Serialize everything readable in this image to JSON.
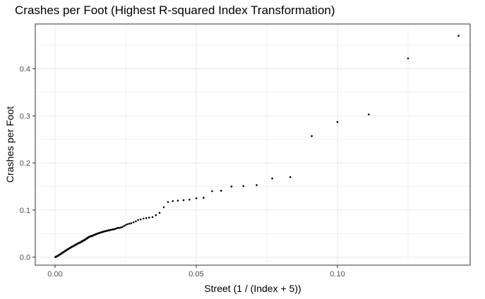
{
  "chart_data": {
    "type": "scatter",
    "title": "Crashes per Foot (Highest R-squared Index Transformation)",
    "xlabel": "Street (1 / (Index + 5))",
    "ylabel": "Crashes per Foot",
    "xlim": [
      -0.007,
      0.147
    ],
    "ylim": [
      -0.017,
      0.495
    ],
    "x_ticks": [
      0.0,
      0.05,
      0.1
    ],
    "x_tick_labels": [
      "0.00",
      "0.05",
      "0.10"
    ],
    "y_ticks": [
      0.0,
      0.1,
      0.2,
      0.3,
      0.4
    ],
    "y_tick_labels": [
      "0.0",
      "0.1",
      "0.2",
      "0.3",
      "0.4"
    ],
    "grid": true,
    "legend": "none",
    "marker_color": "#000000",
    "panel_border_color": "#333333",
    "grid_color": "#ebebeb",
    "points": [
      [
        0.1429,
        0.47
      ],
      [
        0.125,
        0.422
      ],
      [
        0.1111,
        0.303
      ],
      [
        0.1,
        0.287
      ],
      [
        0.0909,
        0.257
      ],
      [
        0.0833,
        0.17
      ],
      [
        0.0769,
        0.167
      ],
      [
        0.0714,
        0.153
      ],
      [
        0.0667,
        0.151
      ],
      [
        0.0625,
        0.15
      ],
      [
        0.0588,
        0.141
      ],
      [
        0.0556,
        0.14
      ],
      [
        0.0526,
        0.126
      ],
      [
        0.05,
        0.125
      ],
      [
        0.0476,
        0.122
      ],
      [
        0.0455,
        0.121
      ],
      [
        0.0435,
        0.12
      ],
      [
        0.0417,
        0.119
      ],
      [
        0.04,
        0.117
      ],
      [
        0.0385,
        0.106
      ],
      [
        0.037,
        0.094
      ],
      [
        0.0357,
        0.089
      ],
      [
        0.0345,
        0.085
      ],
      [
        0.0333,
        0.084
      ],
      [
        0.0323,
        0.083
      ],
      [
        0.0313,
        0.082
      ],
      [
        0.0303,
        0.08
      ],
      [
        0.0294,
        0.079
      ],
      [
        0.0286,
        0.076
      ],
      [
        0.0278,
        0.074
      ],
      [
        0.027,
        0.072
      ],
      [
        0.0263,
        0.071
      ],
      [
        0.0256,
        0.07
      ],
      [
        0.025,
        0.068
      ],
      [
        0.0244,
        0.066
      ],
      [
        0.0238,
        0.064
      ],
      [
        0.0233,
        0.063
      ],
      [
        0.0227,
        0.062
      ],
      [
        0.0222,
        0.062
      ],
      [
        0.0217,
        0.061
      ],
      [
        0.0213,
        0.06
      ],
      [
        0.0208,
        0.059
      ],
      [
        0.0204,
        0.059
      ],
      [
        0.02,
        0.058
      ],
      [
        0.0196,
        0.058
      ],
      [
        0.0192,
        0.057
      ],
      [
        0.0189,
        0.057
      ],
      [
        0.0185,
        0.056
      ],
      [
        0.0182,
        0.056
      ],
      [
        0.0179,
        0.055
      ],
      [
        0.0175,
        0.055
      ],
      [
        0.0172,
        0.054
      ],
      [
        0.0169,
        0.054
      ],
      [
        0.0167,
        0.053
      ],
      [
        0.0164,
        0.053
      ],
      [
        0.0161,
        0.052
      ],
      [
        0.0159,
        0.052
      ],
      [
        0.0156,
        0.051
      ],
      [
        0.0154,
        0.051
      ],
      [
        0.0152,
        0.05
      ],
      [
        0.0149,
        0.05
      ],
      [
        0.0147,
        0.049
      ],
      [
        0.0145,
        0.049
      ],
      [
        0.0143,
        0.048
      ],
      [
        0.0141,
        0.048
      ],
      [
        0.0139,
        0.047
      ],
      [
        0.0137,
        0.047
      ],
      [
        0.0135,
        0.046
      ],
      [
        0.0133,
        0.046
      ],
      [
        0.0132,
        0.045
      ],
      [
        0.013,
        0.045
      ],
      [
        0.0128,
        0.045
      ],
      [
        0.0127,
        0.044
      ],
      [
        0.0125,
        0.044
      ],
      [
        0.0123,
        0.044
      ],
      [
        0.0122,
        0.043
      ],
      [
        0.012,
        0.043
      ],
      [
        0.0119,
        0.042
      ],
      [
        0.0118,
        0.042
      ],
      [
        0.0116,
        0.041
      ],
      [
        0.0115,
        0.041
      ],
      [
        0.0114,
        0.04
      ],
      [
        0.0112,
        0.04
      ],
      [
        0.0111,
        0.039
      ],
      [
        0.011,
        0.039
      ],
      [
        0.0109,
        0.038
      ],
      [
        0.0108,
        0.038
      ],
      [
        0.0106,
        0.037
      ],
      [
        0.0105,
        0.037
      ],
      [
        0.0104,
        0.036
      ],
      [
        0.0103,
        0.036
      ],
      [
        0.0102,
        0.036
      ],
      [
        0.0101,
        0.035
      ],
      [
        0.01,
        0.035
      ],
      [
        0.0099,
        0.035
      ],
      [
        0.0098,
        0.034
      ],
      [
        0.0097,
        0.034
      ],
      [
        0.0096,
        0.034
      ],
      [
        0.0095,
        0.033
      ],
      [
        0.0094,
        0.033
      ],
      [
        0.0093,
        0.033
      ],
      [
        0.0092,
        0.032
      ],
      [
        0.0091,
        0.032
      ],
      [
        0.0089,
        0.031
      ],
      [
        0.0087,
        0.031
      ],
      [
        0.0085,
        0.03
      ],
      [
        0.0083,
        0.03
      ],
      [
        0.0081,
        0.029
      ],
      [
        0.0079,
        0.028
      ],
      [
        0.0077,
        0.028
      ],
      [
        0.0075,
        0.027
      ],
      [
        0.0073,
        0.026
      ],
      [
        0.0071,
        0.026
      ],
      [
        0.0069,
        0.025
      ],
      [
        0.0067,
        0.024
      ],
      [
        0.0065,
        0.024
      ],
      [
        0.0063,
        0.023
      ],
      [
        0.0061,
        0.022
      ],
      [
        0.0059,
        0.022
      ],
      [
        0.0057,
        0.021
      ],
      [
        0.0055,
        0.02
      ],
      [
        0.0053,
        0.02
      ],
      [
        0.0051,
        0.019
      ],
      [
        0.0049,
        0.018
      ],
      [
        0.0047,
        0.017
      ],
      [
        0.0045,
        0.017
      ],
      [
        0.0043,
        0.016
      ],
      [
        0.0041,
        0.015
      ],
      [
        0.0039,
        0.014
      ],
      [
        0.0037,
        0.014
      ],
      [
        0.0035,
        0.013
      ],
      [
        0.0033,
        0.012
      ],
      [
        0.0031,
        0.011
      ],
      [
        0.0029,
        0.01
      ],
      [
        0.0027,
        0.01
      ],
      [
        0.0025,
        0.009
      ],
      [
        0.0023,
        0.008
      ],
      [
        0.0021,
        0.007
      ],
      [
        0.0019,
        0.006
      ],
      [
        0.0017,
        0.006
      ],
      [
        0.0015,
        0.005
      ],
      [
        0.0013,
        0.004
      ],
      [
        0.0011,
        0.003
      ],
      [
        0.0009,
        0.003
      ],
      [
        0.0007,
        0.002
      ],
      [
        0.0005,
        0.001
      ],
      [
        0.0003,
        0.001
      ],
      [
        0.0001,
        0.0
      ]
    ]
  }
}
